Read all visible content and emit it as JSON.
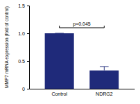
{
  "chart_data": {
    "type": "bar",
    "y_label": "MMP7 mRNA expression (fold of control)",
    "categories": [
      "Control",
      "NDRG2"
    ],
    "values": [
      1.0,
      0.33
    ],
    "errors": [
      0,
      0.07
    ],
    "color": "#1f2a7a",
    "ylim": [
      0,
      1.5
    ],
    "yticks": [
      0,
      0.5,
      {
        "value": 1,
        "label": "1.0"
      },
      {
        "value": 1.5,
        "label": "1.5"
      }
    ],
    "annotation": "p=0.045",
    "grid": false
  }
}
